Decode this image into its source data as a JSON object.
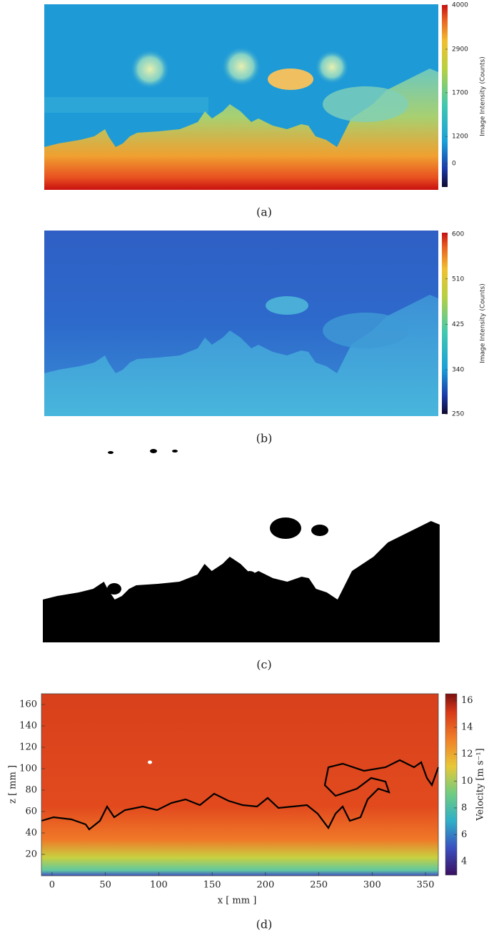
{
  "panels": [
    {
      "caption": "(a)",
      "colorbar": {
        "label": "Image Intensity (Counts)",
        "ticks": [
          4000,
          2900,
          1700,
          1200,
          0
        ]
      }
    },
    {
      "caption": "(b)",
      "colorbar": {
        "label": "Image Intensity (Counts)",
        "ticks": [
          600,
          510,
          425,
          340,
          250
        ]
      }
    },
    {
      "caption": "(c)"
    }
  ],
  "chart_data": {
    "type": "heatmap",
    "caption": "(d)",
    "xlabel": "x [ mm ]",
    "ylabel": "z [ mm ]",
    "xlim": [
      -10,
      362
    ],
    "xticks": [
      0,
      50,
      100,
      150,
      200,
      250,
      300,
      350
    ],
    "ylim": [
      0,
      170
    ],
    "yticks": [
      20,
      40,
      60,
      80,
      100,
      120,
      140,
      160
    ],
    "colorbar": {
      "label": "Velocity [m s⁻¹]",
      "lim": [
        3,
        16.5
      ],
      "ticks": [
        4,
        6,
        8,
        10,
        12,
        14,
        16
      ]
    }
  }
}
